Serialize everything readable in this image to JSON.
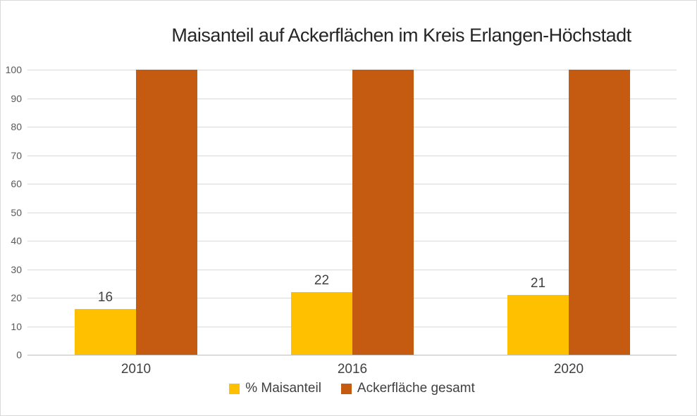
{
  "chart_data": {
    "type": "bar",
    "title": "Maisanteil auf Ackerflächen im Kreis Erlangen-Höchstadt",
    "categories": [
      "2010",
      "2016",
      "2020"
    ],
    "series": [
      {
        "name": "% Maisanteil",
        "color": "#FFC000",
        "values": [
          16,
          22,
          21
        ],
        "show_data_labels": true
      },
      {
        "name": "Ackerfläche gesamt",
        "color": "#C55A11",
        "values": [
          100,
          100,
          100
        ],
        "show_data_labels": false
      }
    ],
    "xlabel": "",
    "ylabel": "",
    "ylim": [
      0,
      100
    ],
    "ytick_step": 10,
    "grid": true,
    "legend_position": "bottom",
    "colors": {
      "gridline": "#D9D9D9",
      "axis_line": "#BFBFBF",
      "y_tick_text": "#595959",
      "x_tick_text": "#404040",
      "data_label_text": "#404040",
      "title_text": "#262626",
      "background": "#FFFFFF",
      "frame_border": "#D9D9D9"
    }
  }
}
